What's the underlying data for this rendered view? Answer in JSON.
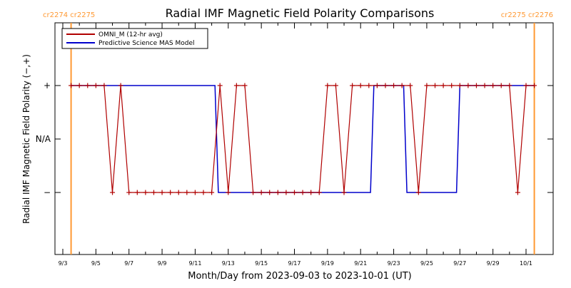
{
  "chart_data": {
    "type": "line",
    "title": "Radial IMF Magnetic Field Polarity Comparisons",
    "xlabel": "Month/Day from 2023-09-03 to 2023-10-01 (UT)",
    "ylabel": "Radial IMF Magnetic Field Polarity (−,+)",
    "x_start_date": "2023-09-03",
    "x_end_date": "2023-10-01",
    "xlim_days": [
      0,
      28.9
    ],
    "x_tick_labels": [
      "9/3",
      "9/5",
      "9/7",
      "9/9",
      "9/11",
      "9/13",
      "9/15",
      "9/17",
      "9/19",
      "9/21",
      "9/23",
      "9/25",
      "9/27",
      "9/29",
      "10/1"
    ],
    "x_tick_days": [
      0,
      2,
      4,
      6,
      8,
      10,
      12,
      14,
      16,
      18,
      20,
      22,
      24,
      26,
      28
    ],
    "y_categories": [
      "−",
      "N/A",
      "+"
    ],
    "y_category_values": [
      -1,
      0,
      1
    ],
    "ylim": [
      -2,
      2
    ],
    "legend": {
      "placement": "top-left",
      "entries": [
        "OMNI_M (12-hr avg)",
        "Predictive Science MAS Model"
      ]
    },
    "annotations": {
      "top_left_label": "cr2274 cr2275",
      "top_right_label": "cr2275 cr2276",
      "rotation_lines_days": [
        0.5,
        28.5
      ],
      "color": "#ff9933"
    },
    "series": [
      {
        "name": "OMNI_M (12-hr avg)",
        "color": "#b00000",
        "marker": "+",
        "x_days": [
          0.5,
          1.0,
          1.5,
          2.0,
          2.5,
          3.0,
          3.5,
          4.0,
          4.5,
          5.0,
          5.5,
          6.0,
          6.5,
          7.0,
          7.5,
          8.0,
          8.5,
          9.0,
          9.5,
          10.0,
          10.5,
          11.0,
          11.5,
          12.0,
          12.5,
          13.0,
          13.5,
          14.0,
          14.5,
          15.0,
          15.5,
          16.0,
          16.5,
          17.0,
          17.5,
          18.0,
          18.5,
          19.0,
          19.5,
          20.0,
          20.5,
          21.0,
          21.5,
          22.0,
          22.5,
          23.0,
          23.5,
          24.0,
          24.5,
          25.0,
          25.5,
          26.0,
          26.5,
          27.0,
          27.5,
          28.0,
          28.5
        ],
        "y": [
          1,
          1,
          1,
          1,
          1,
          -1,
          1,
          -1,
          -1,
          -1,
          -1,
          -1,
          -1,
          -1,
          -1,
          -1,
          -1,
          -1,
          1,
          -1,
          1,
          1,
          -1,
          -1,
          -1,
          -1,
          -1,
          -1,
          -1,
          -1,
          -1,
          1,
          1,
          -1,
          1,
          1,
          1,
          1,
          1,
          1,
          1,
          1,
          -1,
          1,
          1,
          1,
          1,
          1,
          1,
          1,
          1,
          1,
          1,
          1,
          -1,
          1,
          1
        ]
      },
      {
        "name": "Predictive Science MAS Model",
        "color": "#0000cc",
        "x_days": [
          0.5,
          9.2,
          9.4,
          18.6,
          18.8,
          20.6,
          20.8,
          23.8,
          24.0,
          28.5
        ],
        "y": [
          1,
          1,
          -1,
          -1,
          1,
          1,
          -1,
          -1,
          1,
          1
        ]
      }
    ]
  }
}
